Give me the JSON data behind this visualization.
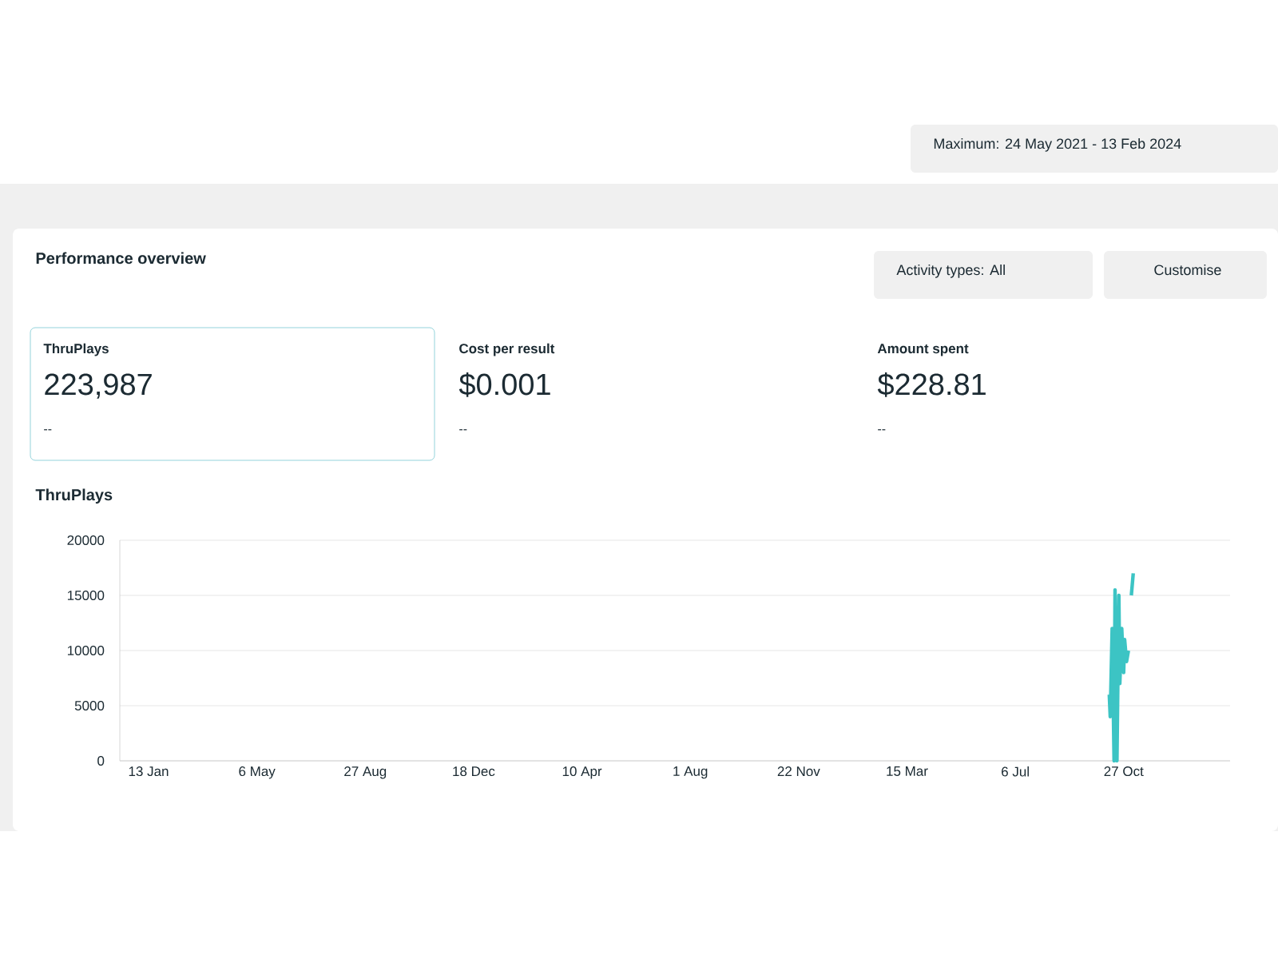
{
  "chart_data": {
    "type": "line",
    "title": "ThruPlays",
    "annotations": [
      "Maximum: 24 May 2021 - 13 Feb 2024",
      "Performance overview",
      "Activity types: All",
      "Customise",
      "ThruPlays",
      "223,987",
      "--",
      "Cost per result",
      "$0.001",
      "--",
      "Amount spent",
      "$228.81",
      "--"
    ],
    "series": [
      {
        "color": "#3cc4c4",
        "x": [
          "2023-10-12",
          "2023-10-13",
          "2023-10-15",
          "2023-10-17",
          "2023-10-18",
          "2023-10-20",
          "2023-10-22",
          "2023-10-23",
          "2023-10-25",
          "2023-10-27",
          "2023-10-28",
          "2023-10-30",
          "2023-11-01",
          "2023-11-02",
          "2023-11-04",
          "2023-11-06"
        ],
        "values": [
          6000,
          4000,
          12000,
          0,
          15500,
          0,
          15000,
          7000,
          12000,
          8000,
          11000,
          9000,
          10000,
          null,
          15000,
          17000
        ]
      }
    ],
    "xlim": [
      "2020-12-14",
      "2024-02-15"
    ],
    "xticks": [
      {
        "value": "2021-01-13",
        "label": "13 Jan"
      },
      {
        "value": "2021-05-06",
        "label": "6 May"
      },
      {
        "value": "2021-08-27",
        "label": "27 Aug"
      },
      {
        "value": "2021-12-18",
        "label": "18 Dec"
      },
      {
        "value": "2022-04-10",
        "label": "10 Apr"
      },
      {
        "value": "2022-08-01",
        "label": "1 Aug"
      },
      {
        "value": "2022-11-22",
        "label": "22 Nov"
      },
      {
        "value": "2023-03-15",
        "label": "15 Mar"
      },
      {
        "value": "2023-07-06",
        "label": "6 Jul"
      },
      {
        "value": "2023-10-27",
        "label": "27 Oct"
      }
    ],
    "ylim": [
      0,
      20000
    ],
    "yticks": [
      0,
      5000,
      10000,
      15000,
      20000
    ],
    "grid": "y",
    "legend": false,
    "line_style": "solid",
    "marker": "none"
  }
}
